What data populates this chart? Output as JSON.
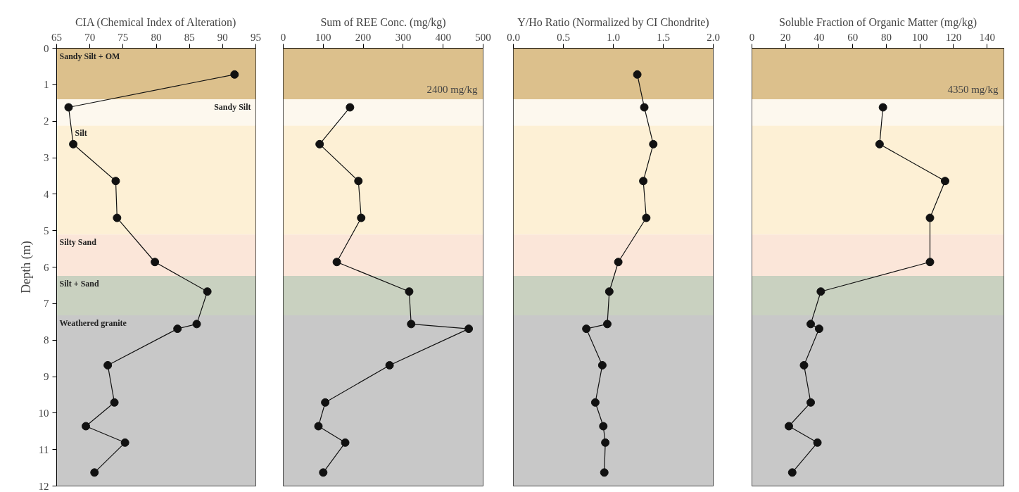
{
  "chart_data": [
    {
      "type": "line",
      "title": "CIA (Chemical Index of Alteration)",
      "ylabel": "Depth (m)",
      "xlim": [
        65,
        95
      ],
      "xticks": [
        65,
        70,
        75,
        80,
        85,
        90,
        95
      ],
      "ylim": [
        12,
        0
      ],
      "yticks": [
        0,
        1,
        2,
        3,
        4,
        5,
        6,
        7,
        8,
        9,
        10,
        11,
        12
      ],
      "marker": "circle",
      "line_style": "solid",
      "series": [
        {
          "color": "#111111",
          "x": [
            91.8,
            66.8,
            67.5,
            73.9,
            74.1,
            79.8,
            87.7,
            86.1,
            83.2,
            72.7,
            73.7,
            69.4,
            75.3,
            70.7
          ],
          "values": [
            0.72,
            1.62,
            2.63,
            3.64,
            4.65,
            5.86,
            6.67,
            7.56,
            7.69,
            8.69,
            9.71,
            10.36,
            10.81,
            11.63
          ]
        }
      ],
      "bands": [
        {
          "axis": "y",
          "from": 0,
          "to": 1.4,
          "label": "Sandy  Silt + OM",
          "color": "#dcc08c"
        },
        {
          "axis": "y",
          "from": 1.4,
          "to": 2.12,
          "label": "Sandy  Silt",
          "color": "#fdf8ee"
        },
        {
          "axis": "y",
          "from": 2.12,
          "to": 5.11,
          "label": "Silt",
          "color": "#fdf0d5"
        },
        {
          "axis": "y",
          "from": 5.11,
          "to": 6.24,
          "label": "Silty Sand",
          "color": "#fbe6d9"
        },
        {
          "axis": "y",
          "from": 6.24,
          "to": 7.32,
          "label": "Silt + Sand",
          "color": "#c9d1c0"
        },
        {
          "axis": "y",
          "from": 7.32,
          "to": 12,
          "label": "Weathered  granite",
          "color": "#c8c8c8"
        }
      ]
    },
    {
      "type": "line",
      "title": "Sum of REE Conc. (mg/kg)",
      "xlim": [
        0,
        500
      ],
      "xticks": [
        0,
        100,
        200,
        300,
        400,
        500
      ],
      "ylim": [
        12,
        0
      ],
      "tick_labels": "x",
      "marker": "circle",
      "line_style": "solid",
      "annotations": [
        "2400 mg/kg"
      ],
      "series": [
        {
          "color": "#111111",
          "x": [
            167,
            91,
            188,
            195,
            134,
            315,
            320,
            464,
            266,
            105,
            88,
            155,
            100
          ],
          "values": [
            1.62,
            2.63,
            3.64,
            4.65,
            5.86,
            6.67,
            7.56,
            7.69,
            8.69,
            9.71,
            10.36,
            10.81,
            11.63
          ]
        }
      ],
      "bands": [
        {
          "axis": "y",
          "from": 0,
          "to": 1.4,
          "color": "#dcc08c"
        },
        {
          "axis": "y",
          "from": 1.4,
          "to": 2.12,
          "color": "#fdf8ee"
        },
        {
          "axis": "y",
          "from": 2.12,
          "to": 5.11,
          "color": "#fdf0d5"
        },
        {
          "axis": "y",
          "from": 5.11,
          "to": 6.24,
          "color": "#fbe6d9"
        },
        {
          "axis": "y",
          "from": 6.24,
          "to": 7.32,
          "color": "#c9d1c0"
        },
        {
          "axis": "y",
          "from": 7.32,
          "to": 12,
          "color": "#c8c8c8"
        }
      ]
    },
    {
      "type": "line",
      "title": "Y/Ho Ratio (Normalized by CI Chondrite)",
      "xlim": [
        0,
        2
      ],
      "xticks": [
        {
          "value": 0,
          "label": "0.0"
        },
        {
          "value": 0.5,
          "label": "0.5"
        },
        {
          "value": 1,
          "label": "1.0"
        },
        {
          "value": 1.5,
          "label": "1.5"
        },
        {
          "value": 2,
          "label": "2.0"
        }
      ],
      "ylim": [
        12,
        0
      ],
      "tick_labels": "x",
      "marker": "circle",
      "line_style": "solid",
      "series": [
        {
          "color": "#111111",
          "x": [
            1.24,
            1.31,
            1.4,
            1.3,
            1.33,
            1.05,
            0.96,
            0.94,
            0.73,
            0.89,
            0.82,
            0.9,
            0.92,
            0.91
          ],
          "values": [
            0.72,
            1.62,
            2.63,
            3.64,
            4.65,
            5.86,
            6.67,
            7.56,
            7.69,
            8.69,
            9.71,
            10.36,
            10.81,
            11.63
          ]
        }
      ],
      "bands": [
        {
          "axis": "y",
          "from": 0,
          "to": 1.4,
          "color": "#dcc08c"
        },
        {
          "axis": "y",
          "from": 1.4,
          "to": 2.12,
          "color": "#fdf8ee"
        },
        {
          "axis": "y",
          "from": 2.12,
          "to": 5.11,
          "color": "#fdf0d5"
        },
        {
          "axis": "y",
          "from": 5.11,
          "to": 6.24,
          "color": "#fbe6d9"
        },
        {
          "axis": "y",
          "from": 6.24,
          "to": 7.32,
          "color": "#c9d1c0"
        },
        {
          "axis": "y",
          "from": 7.32,
          "to": 12,
          "color": "#c8c8c8"
        }
      ]
    },
    {
      "type": "line",
      "title": "Soluble Fraction of Organic Matter (mg/kg)",
      "xlim": [
        0,
        150
      ],
      "xticks": [
        0,
        20,
        40,
        60,
        80,
        100,
        120,
        140
      ],
      "ylim": [
        12,
        0
      ],
      "tick_labels": "x",
      "marker": "circle",
      "line_style": "solid",
      "annotations": [
        "4350 mg/kg"
      ],
      "series": [
        {
          "color": "#111111",
          "x": [
            78,
            76,
            115,
            106,
            106,
            41,
            35,
            40,
            31,
            35,
            22,
            39,
            24
          ],
          "values": [
            1.62,
            2.63,
            3.64,
            4.65,
            5.86,
            6.67,
            7.56,
            7.69,
            8.69,
            9.71,
            10.36,
            10.81,
            11.63
          ]
        }
      ],
      "bands": [
        {
          "axis": "y",
          "from": 0,
          "to": 1.4,
          "color": "#dcc08c"
        },
        {
          "axis": "y",
          "from": 1.4,
          "to": 2.12,
          "color": "#fdf8ee"
        },
        {
          "axis": "y",
          "from": 2.12,
          "to": 5.11,
          "color": "#fdf0d5"
        },
        {
          "axis": "y",
          "from": 5.11,
          "to": 6.24,
          "color": "#fbe6d9"
        },
        {
          "axis": "y",
          "from": 6.24,
          "to": 7.32,
          "color": "#c9d1c0"
        },
        {
          "axis": "y",
          "from": 7.32,
          "to": 12,
          "color": "#c8c8c8"
        }
      ]
    }
  ]
}
